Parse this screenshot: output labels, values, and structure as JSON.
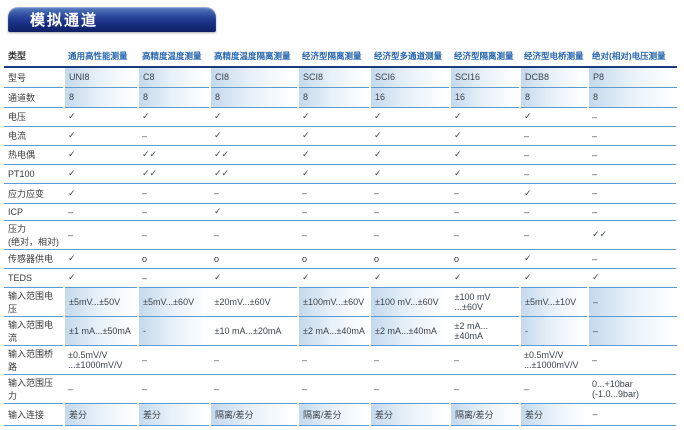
{
  "title": "模拟通道",
  "colors": {
    "banner_blue": "#182f85",
    "banner_highlight": "#5a81c0",
    "header_text": "#2766ae",
    "grid_line": "#5d9bd3",
    "dark_rule": "#1b3c7c",
    "shaded_cell": "#c4d9ec"
  },
  "table": {
    "corner_label": "类型",
    "model_row_label": "型号",
    "channels_row_label": "通道数",
    "columns": [
      {
        "type": "通用高性能测量",
        "model": "UNI8",
        "channels": "8"
      },
      {
        "type": "高精度温度测量",
        "model": "C8",
        "channels": "8"
      },
      {
        "type": "高精度温度隔离测量",
        "model": "CI8",
        "channels": "8"
      },
      {
        "type": "经济型隔离测量",
        "model": "SCI8",
        "channels": "8"
      },
      {
        "type": "经济型多通道测量",
        "model": "SCI6",
        "channels": "16"
      },
      {
        "type": "经济型隔离测量",
        "model": "SCI16",
        "channels": "16"
      },
      {
        "type": "经济型电桥测量",
        "model": "DCB8",
        "channels": "8"
      },
      {
        "type": "绝对(相对)电压测量",
        "model": "P8",
        "channels": "8"
      }
    ],
    "rows": [
      {
        "label": "电压",
        "values": [
          "✓",
          "✓",
          "✓",
          "✓",
          "✓",
          "✓",
          "✓",
          "–"
        ]
      },
      {
        "label": "电流",
        "values": [
          "✓",
          "–",
          "✓",
          "✓",
          "✓",
          "✓",
          "–",
          "–"
        ]
      },
      {
        "label": "热电偶",
        "values": [
          "✓",
          "✓✓",
          "✓✓",
          "✓",
          "✓",
          "✓",
          "–",
          "–"
        ]
      },
      {
        "label": "PT100",
        "values": [
          "✓",
          "✓✓",
          "✓✓",
          "✓",
          "✓",
          "✓",
          "–",
          "–"
        ]
      },
      {
        "label": "应力应变",
        "values": [
          "✓",
          "–",
          "–",
          "–",
          "–",
          "–",
          "✓",
          "–"
        ]
      },
      {
        "label": "ICP",
        "values": [
          "–",
          "–",
          "✓",
          "–",
          "–",
          "–",
          "–",
          "–"
        ]
      },
      {
        "label": "压力\n(绝对，相对)",
        "values": [
          "–",
          "–",
          "–",
          "–",
          "–",
          "–",
          "–",
          "✓✓"
        ]
      },
      {
        "label": "传感器供电",
        "values": [
          "✓",
          "o",
          "o",
          "o",
          "o",
          "o",
          "✓",
          "–"
        ]
      },
      {
        "label": "TEDS",
        "values": [
          "✓",
          "–",
          "✓",
          "✓",
          "✓",
          "✓",
          "✓",
          "✓"
        ]
      },
      {
        "label": "输入范围电压",
        "values": [
          "±5mV...±50V",
          "±5mV...±60V",
          "±20mV...±60V",
          "±100mV...±60V",
          "±100 mV...±60V",
          "±100 mV\n...±60V",
          "±5mV...±10V",
          "–"
        ]
      },
      {
        "label": "输入范围电流",
        "values": [
          "±1 mA...±50mA",
          "-",
          "±10 mA...±20mA",
          "±2 mA...±40mA",
          "±2 mA...±40mA",
          "±2 mA...\n±40mA",
          "-",
          "–"
        ]
      },
      {
        "label": "输入范围桥路",
        "values": [
          "±0.5mV/V\n...±1000mV/V",
          "–",
          "–",
          "–",
          "–",
          "–",
          "±0.5mV/V\n...±1000mV/V",
          "–"
        ]
      },
      {
        "label": "输入范围压力",
        "values": [
          "–",
          "–",
          "–",
          "–",
          "–",
          "–",
          "–",
          "0...+10bar\n(-1.0...9bar)"
        ]
      },
      {
        "label": "输入连接",
        "values": [
          "差分",
          "差分",
          "隔离/差分",
          "隔离/差分",
          "差分",
          "隔离/差分",
          "差分",
          "–"
        ]
      }
    ]
  }
}
